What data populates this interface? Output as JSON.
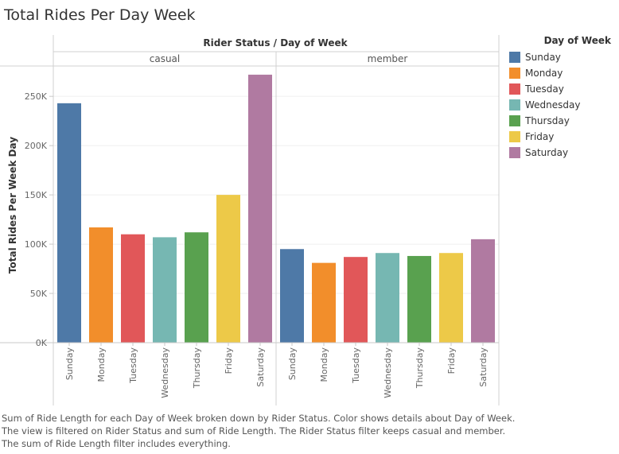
{
  "title": "Total Rides Per Day Week",
  "footnote_lines": [
    "Sum of Ride Length for each Day of Week broken down by Rider Status.  Color shows details about Day of Week.",
    "The view is filtered on Rider Status and sum of Ride Length. The Rider Status filter keeps casual and member.",
    "The sum of Ride Length filter includes everything."
  ],
  "legend": {
    "title": "Day of Week",
    "items": [
      {
        "label": "Sunday",
        "color": "#4e79a7"
      },
      {
        "label": "Monday",
        "color": "#f28e2b"
      },
      {
        "label": "Tuesday",
        "color": "#e15759"
      },
      {
        "label": "Wednesday",
        "color": "#76b7b2"
      },
      {
        "label": "Thursday",
        "color": "#59a14f"
      },
      {
        "label": "Friday",
        "color": "#edc948"
      },
      {
        "label": "Saturday",
        "color": "#b07aa1"
      }
    ]
  },
  "chart_data": {
    "type": "bar",
    "header": "Rider Status  /  Day of Week",
    "ylabel": "Total Rides Per Week Day",
    "ylim": [
      0,
      280000
    ],
    "yticks": [
      {
        "value": 0,
        "label": "0K"
      },
      {
        "value": 50000,
        "label": "50K"
      },
      {
        "value": 100000,
        "label": "100K"
      },
      {
        "value": 150000,
        "label": "150K"
      },
      {
        "value": 200000,
        "label": "200K"
      },
      {
        "value": 250000,
        "label": "250K"
      }
    ],
    "categories": [
      "Sunday",
      "Monday",
      "Tuesday",
      "Wednesday",
      "Thursday",
      "Friday",
      "Saturday"
    ],
    "colors": [
      "#4e79a7",
      "#f28e2b",
      "#e15759",
      "#76b7b2",
      "#59a14f",
      "#edc948",
      "#b07aa1"
    ],
    "panels": [
      {
        "name": "casual",
        "values": [
          243000,
          117000,
          110000,
          107000,
          112000,
          150000,
          272000
        ]
      },
      {
        "name": "member",
        "values": [
          95000,
          81000,
          87000,
          91000,
          88000,
          91000,
          105000
        ]
      }
    ],
    "grid": true
  }
}
